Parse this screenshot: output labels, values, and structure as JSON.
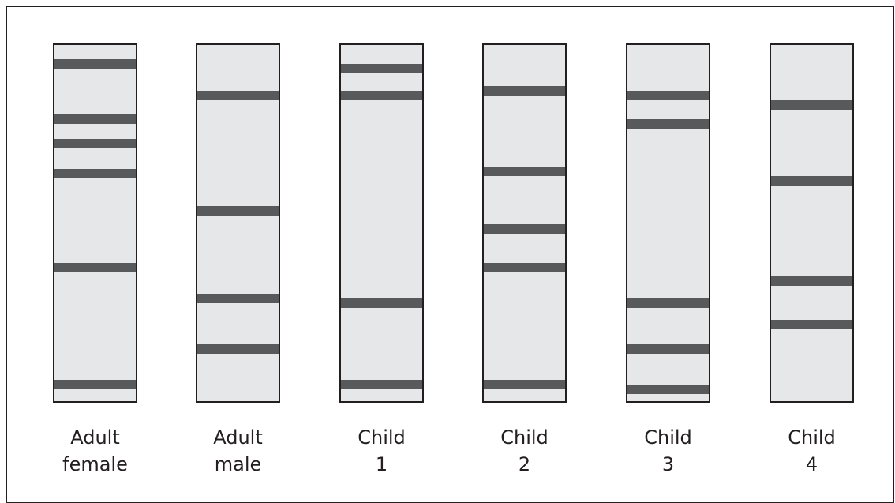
{
  "lanes": [
    {
      "label": [
        "Adult",
        "female"
      ]
    },
    {
      "label": [
        "Adult",
        "male"
      ]
    },
    {
      "label": [
        "Child",
        "1"
      ]
    },
    {
      "label": [
        "Child",
        "2"
      ]
    },
    {
      "label": [
        "Child",
        "3"
      ]
    },
    {
      "label": [
        "Child",
        "4"
      ]
    }
  ]
}
